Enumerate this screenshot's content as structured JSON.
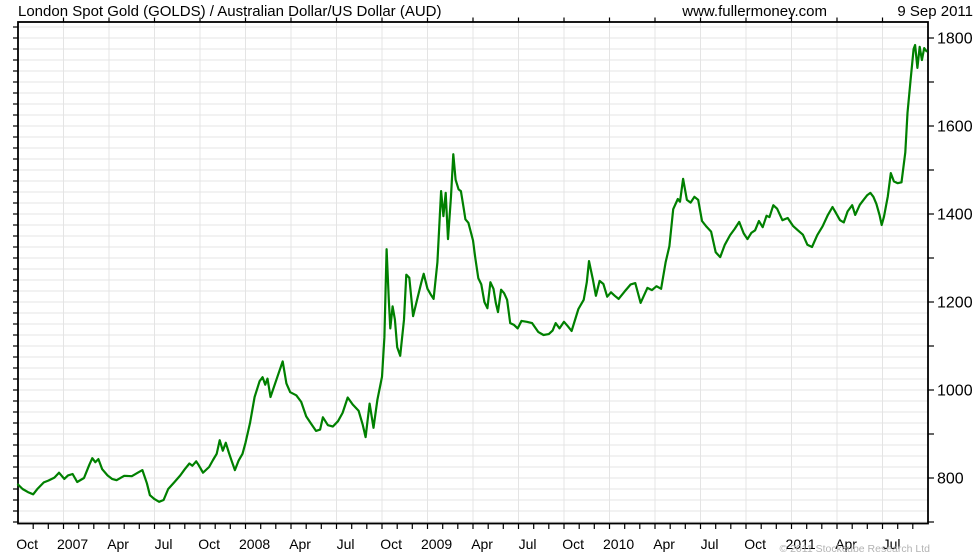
{
  "header": {
    "title": "London Spot Gold (GOLDS) / Australian Dollar/US Dollar (AUD)",
    "website": "www.fullermoney.com",
    "date": "9 Sep 2011"
  },
  "footer": {
    "copyright": "© 2011 Stockcube Research Ltd"
  },
  "chart_data": {
    "type": "line",
    "title": "London Spot Gold (GOLDS) / Australian Dollar/US Dollar (AUD)",
    "series_name": "London Spot Gold priced in Australian Dollars",
    "x_start": "Oct 2006",
    "x_end": "Sep 2011",
    "x_tick_labels": [
      "Oct",
      "2007",
      "Apr",
      "Jul",
      "Oct",
      "2008",
      "Apr",
      "Jul",
      "Oct",
      "2009",
      "Apr",
      "Jul",
      "Oct",
      "2010",
      "Apr",
      "Jul",
      "Oct",
      "2011",
      "Apr",
      "Jul"
    ],
    "x_label_step_months": 3,
    "x_minor_tick_months": 1,
    "y_tick_labels": [
      800,
      1000,
      1200,
      1400,
      1600,
      1800
    ],
    "y_minor_tick_step": 100,
    "y_gridline_step": 25,
    "ylim": [
      698,
      1836
    ],
    "y_axis_side": "right",
    "grid": true,
    "line_color": "#008000",
    "grid_color": "#e4e4e4",
    "axis_color": "#000000",
    "points": [
      [
        0.0,
        785
      ],
      [
        0.3,
        775
      ],
      [
        0.65,
        768
      ],
      [
        1.0,
        763
      ],
      [
        1.3,
        776
      ],
      [
        1.7,
        790
      ],
      [
        2.0,
        794
      ],
      [
        2.4,
        801
      ],
      [
        2.7,
        812
      ],
      [
        3.05,
        798
      ],
      [
        3.3,
        806
      ],
      [
        3.6,
        809
      ],
      [
        3.9,
        791
      ],
      [
        4.35,
        800
      ],
      [
        4.7,
        830
      ],
      [
        4.9,
        845
      ],
      [
        5.1,
        836
      ],
      [
        5.3,
        843
      ],
      [
        5.55,
        820
      ],
      [
        5.9,
        806
      ],
      [
        6.2,
        798
      ],
      [
        6.5,
        795
      ],
      [
        7.0,
        805
      ],
      [
        7.5,
        804
      ],
      [
        7.9,
        812
      ],
      [
        8.2,
        818
      ],
      [
        8.5,
        788
      ],
      [
        8.7,
        761
      ],
      [
        9.0,
        752
      ],
      [
        9.3,
        746
      ],
      [
        9.6,
        750
      ],
      [
        9.9,
        775
      ],
      [
        10.3,
        790
      ],
      [
        10.7,
        806
      ],
      [
        11.0,
        820
      ],
      [
        11.3,
        833
      ],
      [
        11.5,
        828
      ],
      [
        11.75,
        838
      ],
      [
        11.9,
        830
      ],
      [
        12.2,
        812
      ],
      [
        12.6,
        825
      ],
      [
        12.86,
        841
      ],
      [
        13.1,
        855
      ],
      [
        13.3,
        886
      ],
      [
        13.5,
        862
      ],
      [
        13.7,
        880
      ],
      [
        13.9,
        858
      ],
      [
        14.1,
        838
      ],
      [
        14.3,
        818
      ],
      [
        14.55,
        840
      ],
      [
        14.8,
        855
      ],
      [
        15.0,
        880
      ],
      [
        15.3,
        926
      ],
      [
        15.6,
        984
      ],
      [
        15.93,
        1020
      ],
      [
        16.13,
        1029
      ],
      [
        16.3,
        1012
      ],
      [
        16.45,
        1026
      ],
      [
        16.65,
        984
      ],
      [
        17.1,
        1030
      ],
      [
        17.45,
        1065
      ],
      [
        17.7,
        1015
      ],
      [
        17.95,
        995
      ],
      [
        18.35,
        988
      ],
      [
        18.67,
        973
      ],
      [
        19.0,
        940
      ],
      [
        19.33,
        923
      ],
      [
        19.65,
        907
      ],
      [
        19.92,
        910
      ],
      [
        20.1,
        938
      ],
      [
        20.43,
        920
      ],
      [
        20.76,
        917
      ],
      [
        21.1,
        929
      ],
      [
        21.4,
        948
      ],
      [
        21.74,
        983
      ],
      [
        22.07,
        967
      ],
      [
        22.46,
        953
      ],
      [
        22.72,
        922
      ],
      [
        22.92,
        893
      ],
      [
        23.18,
        969
      ],
      [
        23.44,
        914
      ],
      [
        23.7,
        978
      ],
      [
        24.0,
        1030
      ],
      [
        24.16,
        1120
      ],
      [
        24.3,
        1320
      ],
      [
        24.45,
        1205
      ],
      [
        24.55,
        1140
      ],
      [
        24.7,
        1190
      ],
      [
        24.85,
        1160
      ],
      [
        25.0,
        1097
      ],
      [
        25.2,
        1078
      ],
      [
        25.45,
        1160
      ],
      [
        25.6,
        1262
      ],
      [
        25.8,
        1255
      ],
      [
        26.05,
        1168
      ],
      [
        26.35,
        1210
      ],
      [
        26.6,
        1245
      ],
      [
        26.75,
        1264
      ],
      [
        27.0,
        1230
      ],
      [
        27.2,
        1218
      ],
      [
        27.4,
        1207
      ],
      [
        27.65,
        1290
      ],
      [
        27.9,
        1452
      ],
      [
        28.05,
        1395
      ],
      [
        28.2,
        1448
      ],
      [
        28.35,
        1343
      ],
      [
        28.55,
        1440
      ],
      [
        28.7,
        1536
      ],
      [
        28.85,
        1478
      ],
      [
        29.05,
        1456
      ],
      [
        29.2,
        1452
      ],
      [
        29.4,
        1410
      ],
      [
        29.5,
        1388
      ],
      [
        29.7,
        1380
      ],
      [
        30.0,
        1340
      ],
      [
        30.15,
        1300
      ],
      [
        30.35,
        1254
      ],
      [
        30.55,
        1240
      ],
      [
        30.75,
        1200
      ],
      [
        30.95,
        1186
      ],
      [
        31.15,
        1245
      ],
      [
        31.35,
        1230
      ],
      [
        31.5,
        1198
      ],
      [
        31.65,
        1177
      ],
      [
        31.85,
        1228
      ],
      [
        32.05,
        1220
      ],
      [
        32.25,
        1205
      ],
      [
        32.45,
        1152
      ],
      [
        32.7,
        1148
      ],
      [
        32.95,
        1140
      ],
      [
        33.2,
        1157
      ],
      [
        33.55,
        1155
      ],
      [
        33.9,
        1152
      ],
      [
        34.3,
        1132
      ],
      [
        34.65,
        1125
      ],
      [
        35.0,
        1127
      ],
      [
        35.25,
        1135
      ],
      [
        35.45,
        1152
      ],
      [
        35.7,
        1140
      ],
      [
        36.0,
        1155
      ],
      [
        36.25,
        1145
      ],
      [
        36.5,
        1134
      ],
      [
        36.95,
        1184
      ],
      [
        37.3,
        1205
      ],
      [
        37.5,
        1245
      ],
      [
        37.65,
        1293
      ],
      [
        37.9,
        1252
      ],
      [
        38.1,
        1214
      ],
      [
        38.35,
        1248
      ],
      [
        38.6,
        1241
      ],
      [
        38.85,
        1212
      ],
      [
        39.1,
        1222
      ],
      [
        39.35,
        1214
      ],
      [
        39.6,
        1207
      ],
      [
        40.0,
        1224
      ],
      [
        40.4,
        1240
      ],
      [
        40.7,
        1243
      ],
      [
        41.05,
        1198
      ],
      [
        41.5,
        1232
      ],
      [
        41.8,
        1227
      ],
      [
        42.1,
        1236
      ],
      [
        42.4,
        1230
      ],
      [
        42.7,
        1290
      ],
      [
        42.95,
        1327
      ],
      [
        43.2,
        1411
      ],
      [
        43.5,
        1434
      ],
      [
        43.65,
        1428
      ],
      [
        43.85,
        1480
      ],
      [
        44.1,
        1432
      ],
      [
        44.35,
        1426
      ],
      [
        44.6,
        1439
      ],
      [
        44.85,
        1432
      ],
      [
        45.1,
        1384
      ],
      [
        45.4,
        1371
      ],
      [
        45.7,
        1360
      ],
      [
        46.0,
        1313
      ],
      [
        46.3,
        1302
      ],
      [
        46.6,
        1330
      ],
      [
        46.95,
        1352
      ],
      [
        47.25,
        1366
      ],
      [
        47.55,
        1382
      ],
      [
        47.85,
        1356
      ],
      [
        48.1,
        1343
      ],
      [
        48.35,
        1357
      ],
      [
        48.6,
        1363
      ],
      [
        48.85,
        1384
      ],
      [
        49.1,
        1370
      ],
      [
        49.35,
        1396
      ],
      [
        49.55,
        1393
      ],
      [
        49.8,
        1420
      ],
      [
        50.05,
        1412
      ],
      [
        50.4,
        1386
      ],
      [
        50.75,
        1391
      ],
      [
        51.1,
        1373
      ],
      [
        51.45,
        1362
      ],
      [
        51.75,
        1353
      ],
      [
        52.05,
        1330
      ],
      [
        52.35,
        1325
      ],
      [
        52.7,
        1352
      ],
      [
        53.05,
        1372
      ],
      [
        53.4,
        1398
      ],
      [
        53.7,
        1416
      ],
      [
        53.9,
        1404
      ],
      [
        54.2,
        1386
      ],
      [
        54.45,
        1381
      ],
      [
        54.7,
        1406
      ],
      [
        55.0,
        1420
      ],
      [
        55.2,
        1398
      ],
      [
        55.5,
        1421
      ],
      [
        55.75,
        1432
      ],
      [
        56.0,
        1443
      ],
      [
        56.2,
        1448
      ],
      [
        56.4,
        1439
      ],
      [
        56.6,
        1423
      ],
      [
        56.8,
        1398
      ],
      [
        56.95,
        1375
      ],
      [
        57.1,
        1394
      ],
      [
        57.35,
        1440
      ],
      [
        57.55,
        1493
      ],
      [
        57.75,
        1474
      ],
      [
        58.0,
        1470
      ],
      [
        58.25,
        1472
      ],
      [
        58.5,
        1540
      ],
      [
        58.65,
        1630
      ],
      [
        58.85,
        1705
      ],
      [
        59.05,
        1775
      ],
      [
        59.15,
        1784
      ],
      [
        59.3,
        1732
      ],
      [
        59.45,
        1780
      ],
      [
        59.6,
        1750
      ],
      [
        59.75,
        1777
      ],
      [
        59.9,
        1770
      ]
    ]
  }
}
